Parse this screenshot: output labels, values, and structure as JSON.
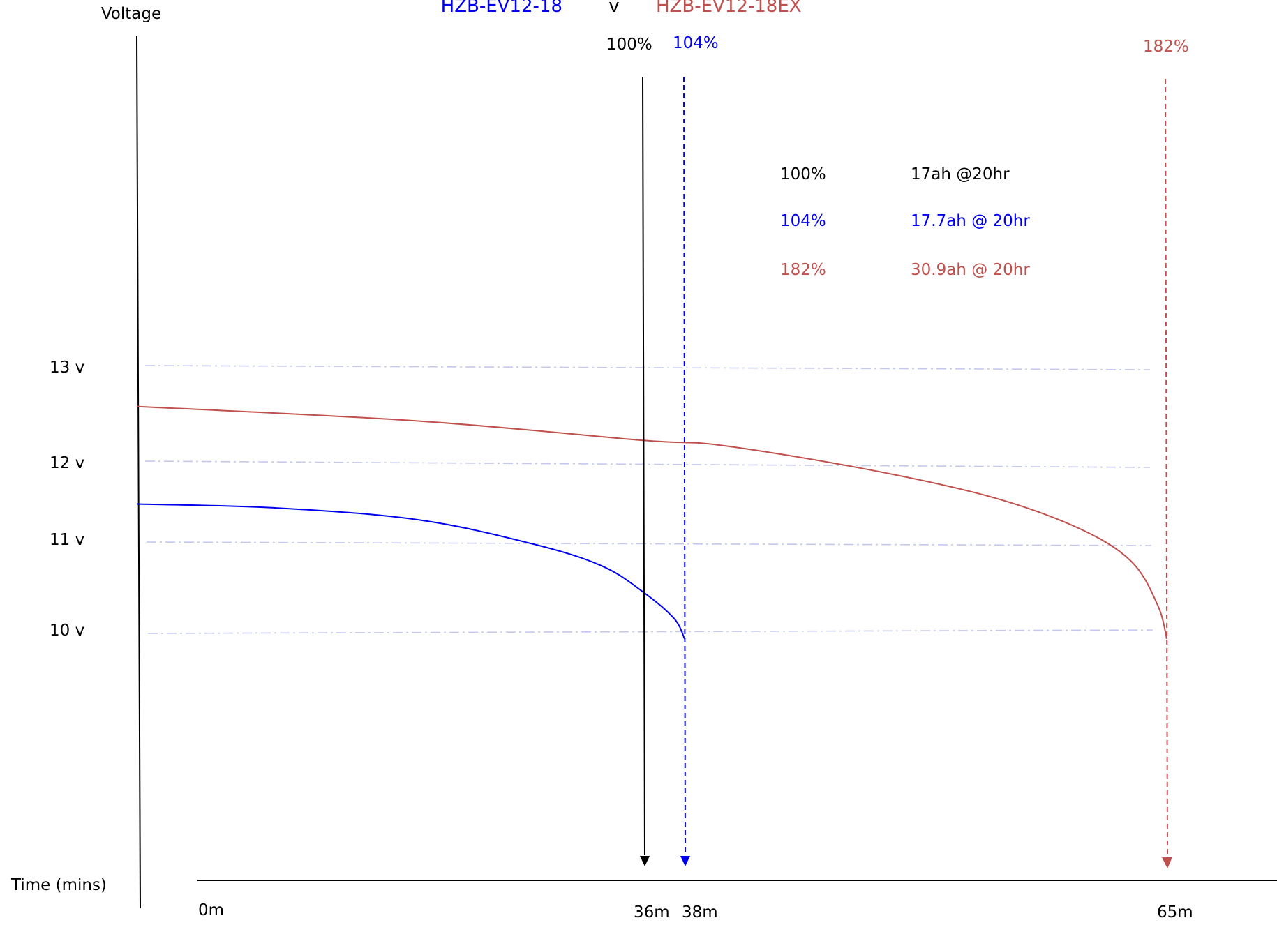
{
  "chart_data": {
    "type": "line",
    "title": {
      "left": "HZB-EV12-18",
      "separator": "v",
      "right": "HZB-EV12-18EX"
    },
    "ylabel": "Voltage",
    "xlabel": "Time (mins)",
    "y_ticks": [
      {
        "label": "13 v",
        "value": 13
      },
      {
        "label": "12 v",
        "value": 12
      },
      {
        "label": "11 v",
        "value": 11
      },
      {
        "label": "10 v",
        "value": 10
      }
    ],
    "x_ticks": [
      {
        "label": "0m",
        "value": 0
      },
      {
        "label": "36m",
        "value": 36
      },
      {
        "label": "38m",
        "value": 38
      },
      {
        "label": "65m",
        "value": 65
      }
    ],
    "grid": true,
    "series": [
      {
        "name": "HZB-EV12-18",
        "color": "#0000ee",
        "points": [
          [
            0,
            11.5
          ],
          [
            10,
            11.45
          ],
          [
            20,
            11.3
          ],
          [
            28,
            11.0
          ],
          [
            33,
            10.75
          ],
          [
            36,
            10.45
          ],
          [
            37.5,
            10.15
          ],
          [
            38,
            9.9
          ]
        ],
        "end_label": "104%",
        "end_time": 38
      },
      {
        "name": "HZB-EV12-18EX",
        "color": "#c0504d",
        "points": [
          [
            0,
            12.6
          ],
          [
            20,
            12.45
          ],
          [
            36,
            12.25
          ],
          [
            40,
            12.2
          ],
          [
            48,
            11.95
          ],
          [
            55,
            11.6
          ],
          [
            60,
            11.2
          ],
          [
            63,
            10.8
          ],
          [
            64.5,
            10.3
          ],
          [
            65,
            9.9
          ]
        ],
        "end_label": "182%",
        "end_time": 65
      }
    ],
    "reference": {
      "label": "100%",
      "time": 36,
      "color": "#000000"
    },
    "legend_table": [
      {
        "pct": "100%",
        "capacity": "17ah @20hr",
        "color": "#000000"
      },
      {
        "pct": "104%",
        "capacity": "17.7ah @ 20hr",
        "color": "#0000ee"
      },
      {
        "pct": "182%",
        "capacity": "30.9ah @ 20hr",
        "color": "#c0504d"
      }
    ]
  }
}
